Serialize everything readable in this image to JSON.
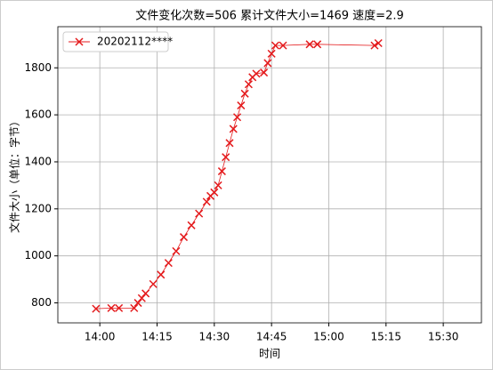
{
  "chart_data": {
    "type": "line",
    "title": "文件变化次数=506   累计文件大小=1469   速度=2.9",
    "xlabel": "时间",
    "ylabel": "文件大小（单位：字节）",
    "x": [
      "13:59",
      "14:03",
      "14:05",
      "14:09",
      "14:10",
      "14:11",
      "14:12",
      "14:14",
      "14:16",
      "14:18",
      "14:20",
      "14:22",
      "14:24",
      "14:26",
      "14:28",
      "14:29",
      "14:30",
      "14:31",
      "14:32",
      "14:33",
      "14:34",
      "14:35",
      "14:36",
      "14:37",
      "14:38",
      "14:39",
      "14:40",
      "14:41",
      "14:43",
      "14:44",
      "14:45",
      "14:46",
      "14:48",
      "14:55",
      "14:57",
      "15:12",
      "15:13"
    ],
    "series": [
      {
        "name": "20202112****",
        "color": "#e41a1c",
        "marker": "x",
        "values": [
          775,
          778,
          778,
          778,
          800,
          820,
          840,
          880,
          920,
          970,
          1020,
          1080,
          1130,
          1180,
          1230,
          1255,
          1270,
          1300,
          1360,
          1420,
          1480,
          1540,
          1590,
          1640,
          1690,
          1730,
          1760,
          1775,
          1780,
          1820,
          1860,
          1895,
          1895,
          1900,
          1900,
          1895,
          1905
        ]
      }
    ],
    "xlim": [
      "13:49",
      "15:40"
    ],
    "xticks": [
      "14:00",
      "14:15",
      "14:30",
      "14:45",
      "15:00",
      "15:15",
      "15:30"
    ],
    "ylim": [
      715,
      1975
    ],
    "yticks": [
      800,
      1000,
      1200,
      1400,
      1600,
      1800
    ],
    "grid": true,
    "legend": "upper left"
  }
}
